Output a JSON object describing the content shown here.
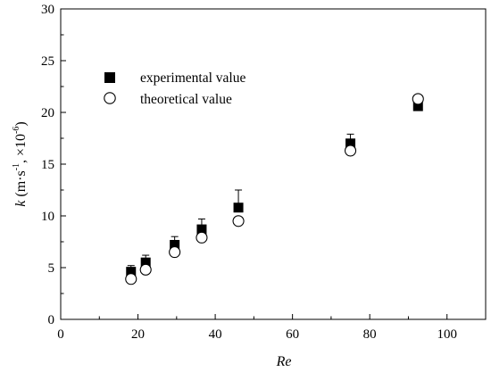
{
  "chart_data": {
    "type": "scatter",
    "title": "",
    "xlabel": "Re",
    "ylabel_parts": [
      "k",
      "(m·s",
      "-1",
      ",  ×10",
      "-6",
      ")"
    ],
    "xlim": [
      0,
      110
    ],
    "ylim": [
      0,
      30
    ],
    "xticks": [
      0,
      20,
      40,
      60,
      80,
      100
    ],
    "yticks": [
      0,
      5,
      10,
      15,
      20,
      25,
      30
    ],
    "xticks_minor_step": 10,
    "yticks_minor_step": 2.5,
    "grid": false,
    "legend_position": "top-left",
    "series": [
      {
        "name": "experimental value",
        "marker": "filled-square",
        "color": "#000000",
        "points": [
          {
            "x": 18.2,
            "y": 4.6,
            "err": 0.6
          },
          {
            "x": 22.0,
            "y": 5.5,
            "err": 0.7
          },
          {
            "x": 29.5,
            "y": 7.2,
            "err": 0.8
          },
          {
            "x": 36.5,
            "y": 8.7,
            "err": 1.0
          },
          {
            "x": 46.0,
            "y": 10.8,
            "err": 1.7
          },
          {
            "x": 75.0,
            "y": 17.0,
            "err": 0.9
          },
          {
            "x": 92.5,
            "y": 20.6,
            "err": 1.0
          }
        ]
      },
      {
        "name": "theoretical value",
        "marker": "open-circle",
        "color": "#000000",
        "points": [
          {
            "x": 18.2,
            "y": 3.9
          },
          {
            "x": 22.0,
            "y": 4.8
          },
          {
            "x": 29.5,
            "y": 6.5
          },
          {
            "x": 36.5,
            "y": 7.9
          },
          {
            "x": 46.0,
            "y": 9.5
          },
          {
            "x": 75.0,
            "y": 16.3
          },
          {
            "x": 92.5,
            "y": 21.3
          }
        ]
      }
    ]
  }
}
